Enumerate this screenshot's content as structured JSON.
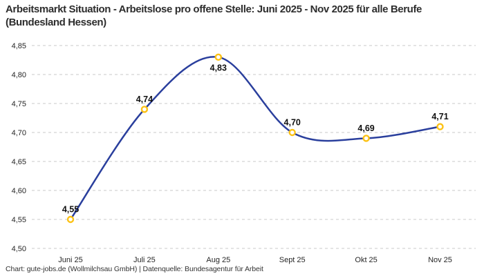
{
  "title": "Arbeitsmarkt Situation - Arbeitslose pro offene Stelle: Juni 2025 - Nov 2025 für alle Berufe (Bundesland Hessen)",
  "footer": "Chart: gute-jobs.de (Wollmilchsau GmbH) | Datenquelle: Bundesagentur für Arbeit",
  "chart_data": {
    "type": "line",
    "title": "Arbeitsmarkt Situation - Arbeitslose pro offene Stelle: Juni 2025 - Nov 2025 für alle Berufe (Bundesland Hessen)",
    "categories": [
      "Juni 25",
      "Juli 25",
      "Aug 25",
      "Sept 25",
      "Okt 25",
      "Nov 25"
    ],
    "values": [
      4.55,
      4.74,
      4.83,
      4.7,
      4.69,
      4.71
    ],
    "value_labels": [
      "4,55",
      "4,74",
      "4,83",
      "4,70",
      "4,69",
      "4,71"
    ],
    "label_placement": [
      "above",
      "above",
      "below",
      "above",
      "above",
      "above"
    ],
    "y_ticks": [
      {
        "value": 4.85,
        "label": "4,85"
      },
      {
        "value": 4.8,
        "label": "4,80"
      },
      {
        "value": 4.75,
        "label": "4,75"
      },
      {
        "value": 4.7,
        "label": "4,70"
      },
      {
        "value": 4.65,
        "label": "4,65"
      },
      {
        "value": 4.6,
        "label": "4,60"
      },
      {
        "value": 4.55,
        "label": "4,55"
      },
      {
        "value": 4.5,
        "label": "4,50"
      }
    ],
    "ylim": [
      4.5,
      4.85
    ],
    "xlabel": "",
    "ylabel": "",
    "grid": "horizontal-dashed",
    "legend": "none",
    "smooth": true,
    "colors": {
      "line": "#2a3f9d",
      "marker_ring": "#fcc215",
      "marker_fill": "#ffffff",
      "gridline": "#c9c9c9",
      "tick_text": "#262626",
      "value_label_text": "#111111"
    }
  }
}
